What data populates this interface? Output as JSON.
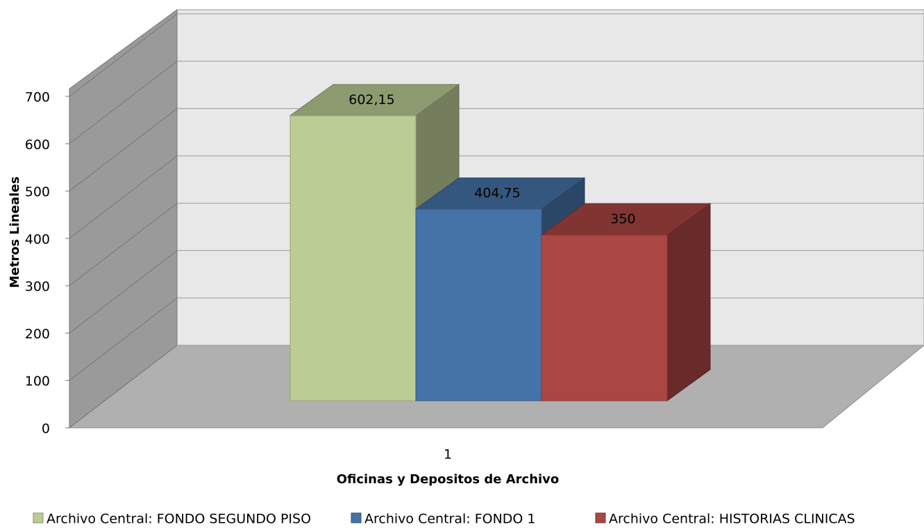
{
  "chart_data": {
    "type": "bar3d",
    "categories": [
      "1"
    ],
    "x_label": "Oficinas y Depositos de Archivo",
    "y_label": "Metros Lineales",
    "series": [
      {
        "name": "Archivo Central: FONDO SEGUNDO PISO",
        "color": "#bbcc95",
        "values": [
          602.15
        ],
        "value_labels": [
          "602,15"
        ]
      },
      {
        "name": "Archivo Central: FONDO 1",
        "color": "#4572a7",
        "values": [
          404.75
        ],
        "value_labels": [
          "404,75"
        ]
      },
      {
        "name": "Archivo Central: HISTORIAS CLINICAS",
        "color": "#aa4643",
        "values": [
          350
        ],
        "value_labels": [
          "350"
        ]
      }
    ],
    "ylim": [
      0,
      700
    ],
    "yticks": [
      0,
      100,
      200,
      300,
      400,
      500,
      600,
      700
    ],
    "grid": true,
    "legend": "bottom"
  }
}
